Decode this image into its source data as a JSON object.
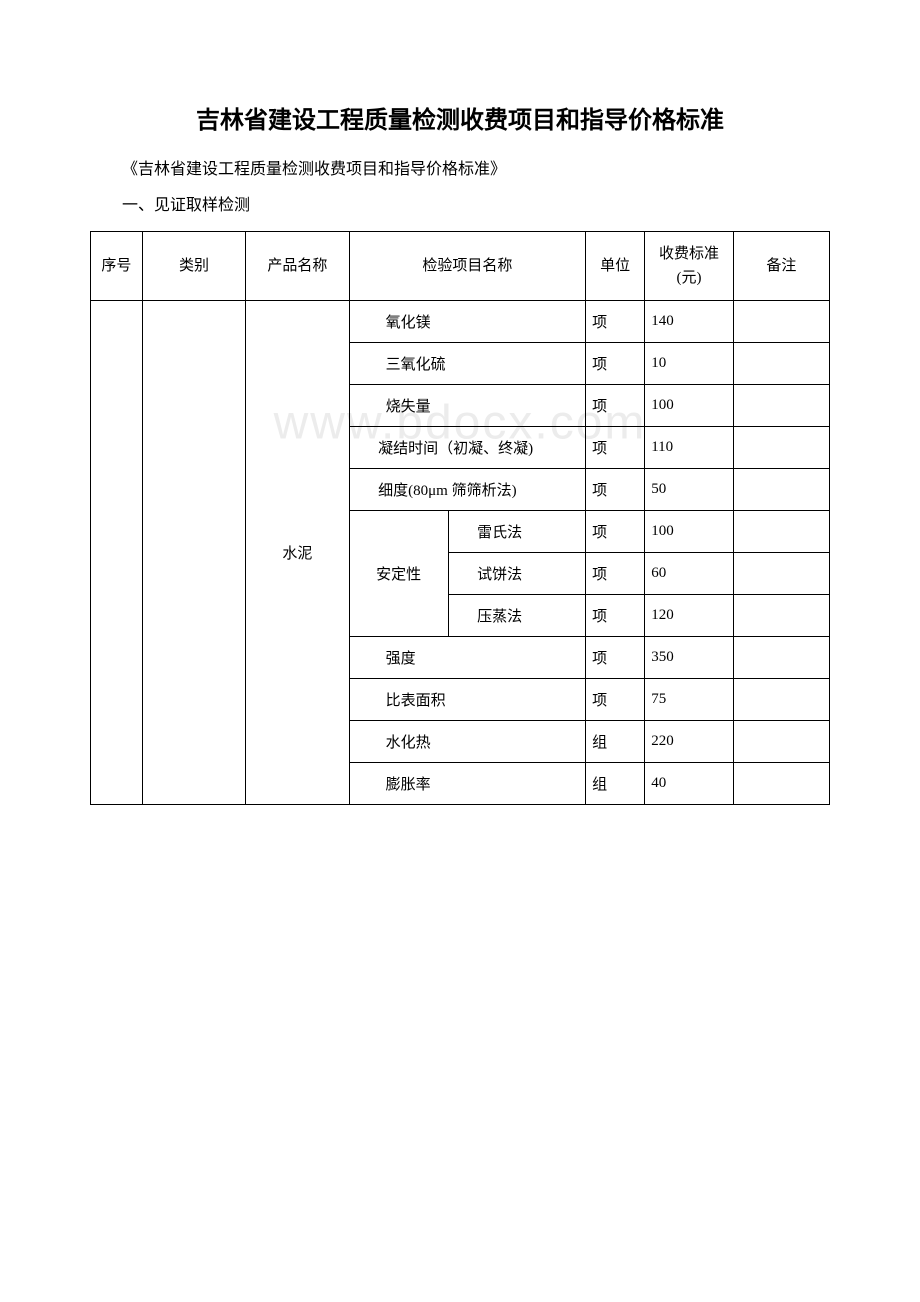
{
  "title": "吉林省建设工程质量检测收费项目和指导价格标准",
  "subtitle": "《吉林省建设工程质量检测收费项目和指导价格标准》",
  "section": "一、见证取样检测",
  "watermark": "www.bdocx.com",
  "table": {
    "headers": {
      "num": "序号",
      "category": "类别",
      "product": "产品名称",
      "item": "检验项目名称",
      "unit": "单位",
      "fee": "收费标准(元)",
      "note": "备注"
    },
    "product_name": "水泥",
    "stability_label": "安定性",
    "rows": [
      {
        "item": "氧化镁",
        "unit": "项",
        "fee": "140",
        "note": ""
      },
      {
        "item": "三氧化硫",
        "unit": "项",
        "fee": "10",
        "note": ""
      },
      {
        "item": "烧失量",
        "unit": "项",
        "fee": "100",
        "note": ""
      },
      {
        "item": "凝结时间（初凝、终凝)",
        "unit": "项",
        "fee": "110",
        "note": ""
      },
      {
        "item": "细度(80μm 筛筛析法)",
        "unit": "项",
        "fee": "50",
        "note": ""
      },
      {
        "item": "雷氏法",
        "unit": "项",
        "fee": "100",
        "note": ""
      },
      {
        "item": "试饼法",
        "unit": "项",
        "fee": "60",
        "note": ""
      },
      {
        "item": "压蒸法",
        "unit": "项",
        "fee": "120",
        "note": ""
      },
      {
        "item": "强度",
        "unit": "项",
        "fee": "350",
        "note": ""
      },
      {
        "item": "比表面积",
        "unit": "项",
        "fee": "75",
        "note": ""
      },
      {
        "item": "水化热",
        "unit": "组",
        "fee": "220",
        "note": ""
      },
      {
        "item": "膨胀率",
        "unit": "组",
        "fee": "40",
        "note": ""
      }
    ]
  },
  "colors": {
    "text": "#000000",
    "background": "#ffffff",
    "border": "#000000",
    "watermark": "rgba(200,200,200,0.35)"
  }
}
